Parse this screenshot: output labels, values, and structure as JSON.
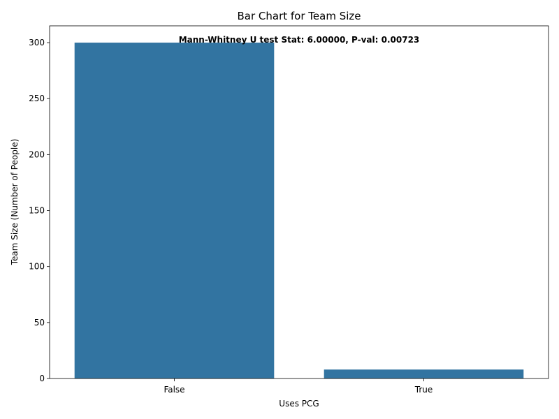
{
  "chart_data": {
    "type": "bar",
    "title": "Bar Chart for Team Size",
    "xlabel": "Uses PCG",
    "ylabel": "Team Size (Number of People)",
    "categories": [
      "False",
      "True"
    ],
    "values": [
      300,
      8
    ],
    "ylim": [
      0,
      315
    ],
    "yticks": [
      0,
      50,
      100,
      150,
      200,
      250,
      300
    ],
    "bar_color": "#3274a1",
    "grid": false,
    "annotation": "Mann-Whitney U test Stat: 6.00000, P-val: 0.00723"
  }
}
